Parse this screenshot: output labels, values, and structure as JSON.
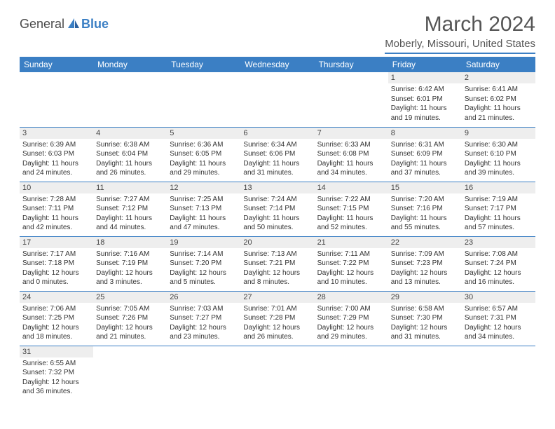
{
  "logo": {
    "text1": "General",
    "text2": "Blue"
  },
  "title": "March 2024",
  "location": "Moberly, Missouri, United States",
  "colors": {
    "accent": "#3b7fc4",
    "header_text": "#ffffff",
    "daynum_bg": "#eeeeee"
  },
  "weekdays": [
    "Sunday",
    "Monday",
    "Tuesday",
    "Wednesday",
    "Thursday",
    "Friday",
    "Saturday"
  ],
  "weeks": [
    [
      null,
      null,
      null,
      null,
      null,
      {
        "n": "1",
        "sr": "Sunrise: 6:42 AM",
        "ss": "Sunset: 6:01 PM",
        "dl": "Daylight: 11 hours and 19 minutes."
      },
      {
        "n": "2",
        "sr": "Sunrise: 6:41 AM",
        "ss": "Sunset: 6:02 PM",
        "dl": "Daylight: 11 hours and 21 minutes."
      }
    ],
    [
      {
        "n": "3",
        "sr": "Sunrise: 6:39 AM",
        "ss": "Sunset: 6:03 PM",
        "dl": "Daylight: 11 hours and 24 minutes."
      },
      {
        "n": "4",
        "sr": "Sunrise: 6:38 AM",
        "ss": "Sunset: 6:04 PM",
        "dl": "Daylight: 11 hours and 26 minutes."
      },
      {
        "n": "5",
        "sr": "Sunrise: 6:36 AM",
        "ss": "Sunset: 6:05 PM",
        "dl": "Daylight: 11 hours and 29 minutes."
      },
      {
        "n": "6",
        "sr": "Sunrise: 6:34 AM",
        "ss": "Sunset: 6:06 PM",
        "dl": "Daylight: 11 hours and 31 minutes."
      },
      {
        "n": "7",
        "sr": "Sunrise: 6:33 AM",
        "ss": "Sunset: 6:08 PM",
        "dl": "Daylight: 11 hours and 34 minutes."
      },
      {
        "n": "8",
        "sr": "Sunrise: 6:31 AM",
        "ss": "Sunset: 6:09 PM",
        "dl": "Daylight: 11 hours and 37 minutes."
      },
      {
        "n": "9",
        "sr": "Sunrise: 6:30 AM",
        "ss": "Sunset: 6:10 PM",
        "dl": "Daylight: 11 hours and 39 minutes."
      }
    ],
    [
      {
        "n": "10",
        "sr": "Sunrise: 7:28 AM",
        "ss": "Sunset: 7:11 PM",
        "dl": "Daylight: 11 hours and 42 minutes."
      },
      {
        "n": "11",
        "sr": "Sunrise: 7:27 AM",
        "ss": "Sunset: 7:12 PM",
        "dl": "Daylight: 11 hours and 44 minutes."
      },
      {
        "n": "12",
        "sr": "Sunrise: 7:25 AM",
        "ss": "Sunset: 7:13 PM",
        "dl": "Daylight: 11 hours and 47 minutes."
      },
      {
        "n": "13",
        "sr": "Sunrise: 7:24 AM",
        "ss": "Sunset: 7:14 PM",
        "dl": "Daylight: 11 hours and 50 minutes."
      },
      {
        "n": "14",
        "sr": "Sunrise: 7:22 AM",
        "ss": "Sunset: 7:15 PM",
        "dl": "Daylight: 11 hours and 52 minutes."
      },
      {
        "n": "15",
        "sr": "Sunrise: 7:20 AM",
        "ss": "Sunset: 7:16 PM",
        "dl": "Daylight: 11 hours and 55 minutes."
      },
      {
        "n": "16",
        "sr": "Sunrise: 7:19 AM",
        "ss": "Sunset: 7:17 PM",
        "dl": "Daylight: 11 hours and 57 minutes."
      }
    ],
    [
      {
        "n": "17",
        "sr": "Sunrise: 7:17 AM",
        "ss": "Sunset: 7:18 PM",
        "dl": "Daylight: 12 hours and 0 minutes."
      },
      {
        "n": "18",
        "sr": "Sunrise: 7:16 AM",
        "ss": "Sunset: 7:19 PM",
        "dl": "Daylight: 12 hours and 3 minutes."
      },
      {
        "n": "19",
        "sr": "Sunrise: 7:14 AM",
        "ss": "Sunset: 7:20 PM",
        "dl": "Daylight: 12 hours and 5 minutes."
      },
      {
        "n": "20",
        "sr": "Sunrise: 7:13 AM",
        "ss": "Sunset: 7:21 PM",
        "dl": "Daylight: 12 hours and 8 minutes."
      },
      {
        "n": "21",
        "sr": "Sunrise: 7:11 AM",
        "ss": "Sunset: 7:22 PM",
        "dl": "Daylight: 12 hours and 10 minutes."
      },
      {
        "n": "22",
        "sr": "Sunrise: 7:09 AM",
        "ss": "Sunset: 7:23 PM",
        "dl": "Daylight: 12 hours and 13 minutes."
      },
      {
        "n": "23",
        "sr": "Sunrise: 7:08 AM",
        "ss": "Sunset: 7:24 PM",
        "dl": "Daylight: 12 hours and 16 minutes."
      }
    ],
    [
      {
        "n": "24",
        "sr": "Sunrise: 7:06 AM",
        "ss": "Sunset: 7:25 PM",
        "dl": "Daylight: 12 hours and 18 minutes."
      },
      {
        "n": "25",
        "sr": "Sunrise: 7:05 AM",
        "ss": "Sunset: 7:26 PM",
        "dl": "Daylight: 12 hours and 21 minutes."
      },
      {
        "n": "26",
        "sr": "Sunrise: 7:03 AM",
        "ss": "Sunset: 7:27 PM",
        "dl": "Daylight: 12 hours and 23 minutes."
      },
      {
        "n": "27",
        "sr": "Sunrise: 7:01 AM",
        "ss": "Sunset: 7:28 PM",
        "dl": "Daylight: 12 hours and 26 minutes."
      },
      {
        "n": "28",
        "sr": "Sunrise: 7:00 AM",
        "ss": "Sunset: 7:29 PM",
        "dl": "Daylight: 12 hours and 29 minutes."
      },
      {
        "n": "29",
        "sr": "Sunrise: 6:58 AM",
        "ss": "Sunset: 7:30 PM",
        "dl": "Daylight: 12 hours and 31 minutes."
      },
      {
        "n": "30",
        "sr": "Sunrise: 6:57 AM",
        "ss": "Sunset: 7:31 PM",
        "dl": "Daylight: 12 hours and 34 minutes."
      }
    ],
    [
      {
        "n": "31",
        "sr": "Sunrise: 6:55 AM",
        "ss": "Sunset: 7:32 PM",
        "dl": "Daylight: 12 hours and 36 minutes."
      },
      null,
      null,
      null,
      null,
      null,
      null
    ]
  ]
}
